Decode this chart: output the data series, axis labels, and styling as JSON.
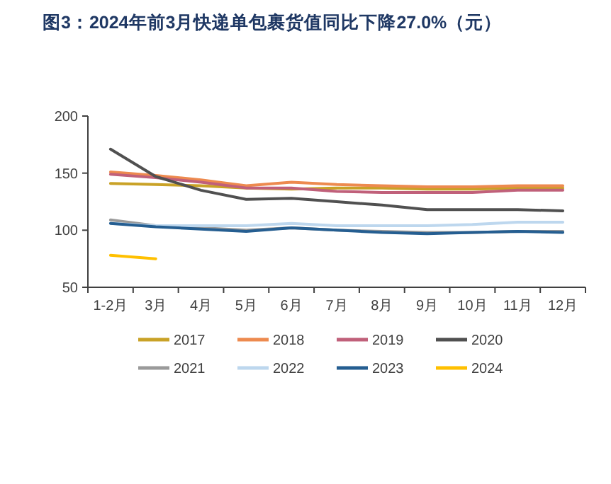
{
  "chart_data": {
    "type": "line",
    "title": "图3：2024年前3月快递单包裹货值同比下降27.0%（元）",
    "categories": [
      "1-2月",
      "3月",
      "4月",
      "5月",
      "6月",
      "7月",
      "8月",
      "9月",
      "10月",
      "11月",
      "12月"
    ],
    "ylim": [
      50,
      200
    ],
    "yticks": [
      50,
      100,
      150,
      200
    ],
    "grid": false,
    "legend": "bottom",
    "marker": "none",
    "line_style": "solid",
    "series": [
      {
        "name": "2017",
        "color": "#c9a227",
        "values": [
          141,
          140,
          139,
          137,
          136,
          137,
          137,
          136,
          136,
          137,
          137
        ]
      },
      {
        "name": "2018",
        "color": "#ed8a4f",
        "values": [
          151,
          148,
          144,
          139,
          142,
          140,
          139,
          138,
          138,
          139,
          139
        ]
      },
      {
        "name": "2019",
        "color": "#c0607a",
        "values": [
          149,
          146,
          142,
          137,
          137,
          134,
          133,
          133,
          133,
          135,
          135
        ]
      },
      {
        "name": "2020",
        "color": "#505050",
        "values": [
          171,
          147,
          135,
          127,
          128,
          125,
          122,
          118,
          118,
          118,
          117
        ]
      },
      {
        "name": "2021",
        "color": "#9a9a9a",
        "values": [
          109,
          104,
          102,
          100,
          102,
          100,
          99,
          98,
          98,
          99,
          99
        ]
      },
      {
        "name": "2022",
        "color": "#bdd7ee",
        "values": [
          106,
          104,
          104,
          104,
          106,
          104,
          104,
          104,
          105,
          107,
          107
        ]
      },
      {
        "name": "2023",
        "color": "#255e91",
        "values": [
          106,
          103,
          101,
          99,
          102,
          100,
          98,
          97,
          98,
          99,
          98
        ]
      },
      {
        "name": "2024",
        "color": "#ffc000",
        "values": [
          78,
          75,
          null,
          null,
          null,
          null,
          null,
          null,
          null,
          null,
          null
        ]
      }
    ]
  }
}
